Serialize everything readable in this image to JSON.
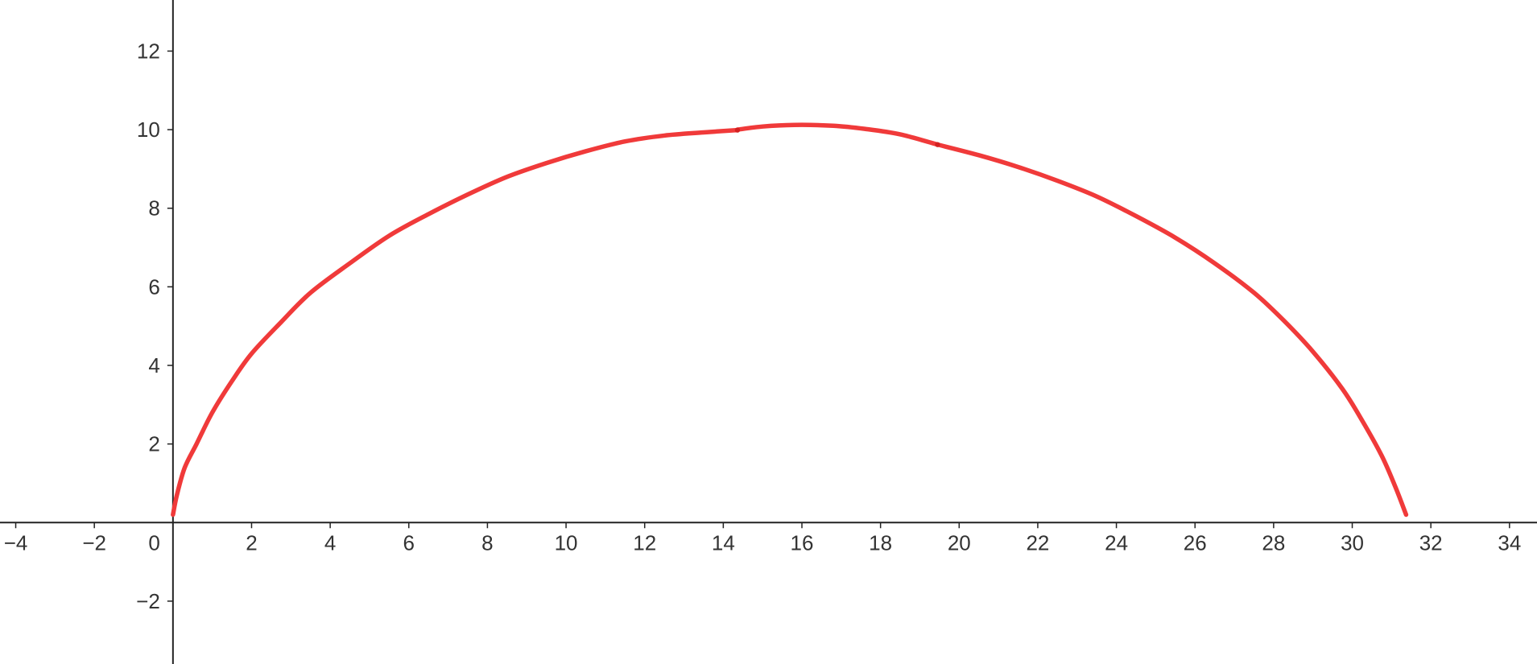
{
  "chart_data": {
    "type": "line",
    "title": "",
    "xlabel": "",
    "ylabel": "",
    "xlim": [
      -4.4,
      34.7
    ],
    "ylim": [
      -3.6,
      13.3
    ],
    "grid": false,
    "x_ticks": [
      -4,
      -2,
      2,
      4,
      6,
      8,
      10,
      12,
      14,
      16,
      18,
      20,
      22,
      24,
      26,
      28,
      30,
      32,
      34
    ],
    "x_tick_labels": [
      "−4",
      "−2",
      "2",
      "4",
      "6",
      "8",
      "10",
      "12",
      "14",
      "16",
      "18",
      "20",
      "22",
      "24",
      "26",
      "28",
      "30",
      "32",
      "34"
    ],
    "y_ticks": [
      -2,
      2,
      4,
      6,
      8,
      10,
      12
    ],
    "y_tick_labels": [
      "−2",
      "2",
      "4",
      "6",
      "8",
      "10",
      "12"
    ],
    "origin_label": "0",
    "color": "#f03a3a",
    "series": [
      {
        "x": [
          0.0,
          0.1,
          0.3,
          0.6,
          1.0,
          1.5,
          2.0,
          2.75,
          3.5,
          4.5,
          5.5,
          6.5,
          7.5,
          8.5,
          9.5,
          10.5,
          11.5,
          12.5,
          13.5,
          14.36
        ],
        "y": [
          0.2,
          0.7,
          1.4,
          2.0,
          2.8,
          3.6,
          4.3,
          5.1,
          5.85,
          6.6,
          7.3,
          7.85,
          8.35,
          8.8,
          9.15,
          9.45,
          9.7,
          9.85,
          9.93,
          9.99
        ]
      },
      {
        "x": [
          14.36,
          15.0,
          15.8,
          16.8,
          17.6,
          18.5,
          19.45
        ],
        "y": [
          10.0,
          10.08,
          10.12,
          10.1,
          10.02,
          9.88,
          9.62
        ]
      },
      {
        "x": [
          19.45,
          20.5,
          21.5,
          22.5,
          23.5,
          24.5,
          25.5,
          26.5,
          27.5,
          28.25,
          29.0,
          29.75,
          30.25,
          30.75,
          31.1,
          31.37
        ],
        "y": [
          9.62,
          9.35,
          9.05,
          8.7,
          8.3,
          7.8,
          7.25,
          6.6,
          5.85,
          5.15,
          4.35,
          3.4,
          2.6,
          1.7,
          0.9,
          0.2
        ]
      }
    ],
    "points": [
      {
        "x": 14.36,
        "y": 9.99
      },
      {
        "x": 19.45,
        "y": 9.62
      }
    ]
  }
}
